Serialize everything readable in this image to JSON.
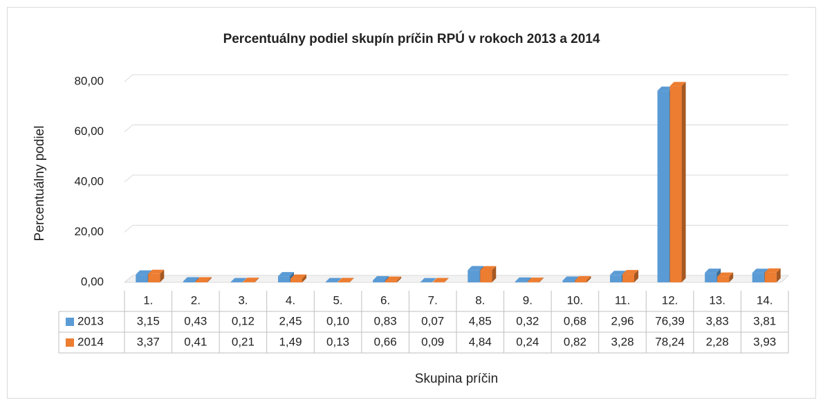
{
  "chart_data": {
    "type": "bar",
    "title": "Percentuálny podiel skupín príčin RPÚ v rokoch 2013 a 2014",
    "x_label": "Skupina príčin",
    "y_label": "Percentuálny podiel",
    "categories": [
      "1.",
      "2.",
      "3.",
      "4.",
      "5.",
      "6.",
      "7.",
      "8.",
      "9.",
      "10.",
      "11.",
      "12.",
      "13.",
      "14."
    ],
    "series": [
      {
        "name": "2013",
        "color": "#5b9bd5",
        "values": [
          3.15,
          0.43,
          0.12,
          2.45,
          0.1,
          0.83,
          0.07,
          4.85,
          0.32,
          0.68,
          2.96,
          76.39,
          3.83,
          3.81
        ],
        "value_labels": [
          "3,15",
          "0,43",
          "0,12",
          "2,45",
          "0,10",
          "0,83",
          "0,07",
          "4,85",
          "0,32",
          "0,68",
          "2,96",
          "76,39",
          "3,83",
          "3,81"
        ]
      },
      {
        "name": "2014",
        "color": "#ed7d31",
        "values": [
          3.37,
          0.41,
          0.21,
          1.49,
          0.13,
          0.66,
          0.09,
          4.84,
          0.24,
          0.82,
          3.28,
          78.24,
          2.28,
          3.93
        ],
        "value_labels": [
          "3,37",
          "0,41",
          "0,21",
          "1,49",
          "0,13",
          "0,66",
          "0,09",
          "4,84",
          "0,24",
          "0,82",
          "3,28",
          "78,24",
          "2,28",
          "3,93"
        ]
      }
    ],
    "ylim": [
      0,
      80
    ],
    "yticks": [
      {
        "value": 0,
        "label": "0,00"
      },
      {
        "value": 20,
        "label": "20,00"
      },
      {
        "value": 40,
        "label": "40,00"
      },
      {
        "value": 60,
        "label": "60,00"
      },
      {
        "value": 80,
        "label": "80,00"
      }
    ],
    "grid": true
  }
}
